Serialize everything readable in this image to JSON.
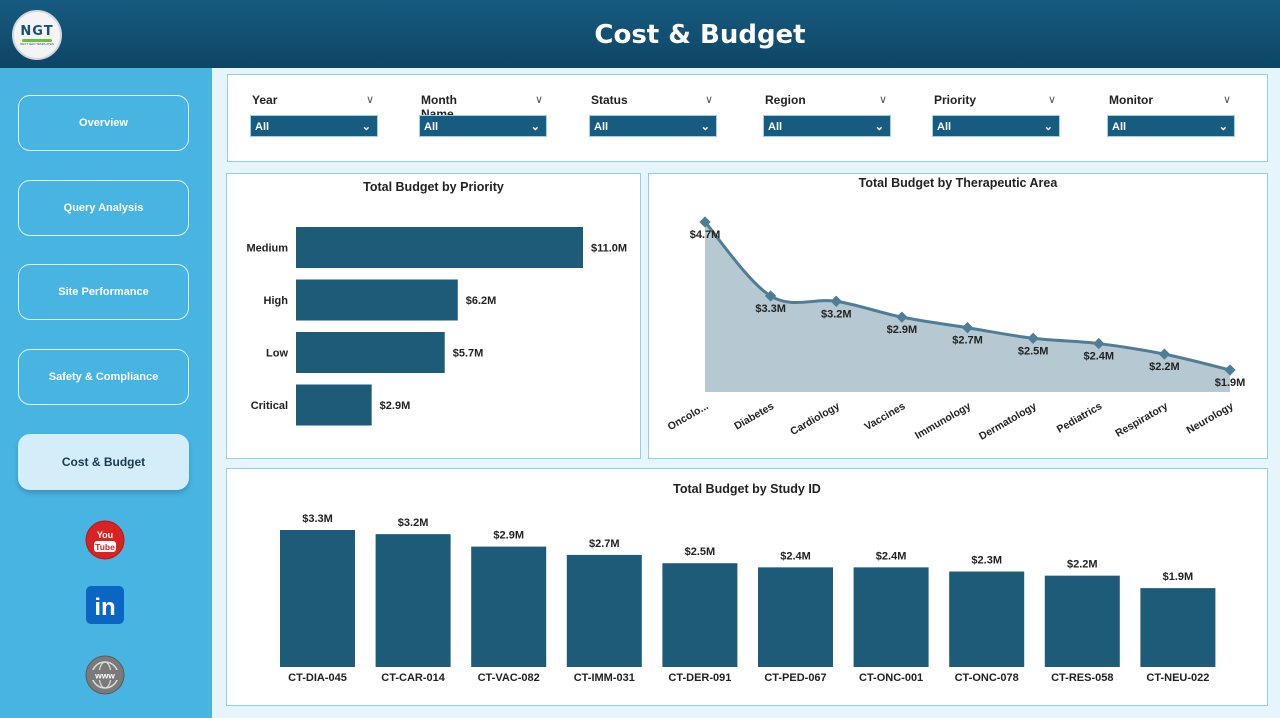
{
  "header": {
    "title": "Cost & Budget",
    "logo_text": "NGT",
    "logo_subtext": "NEXT GEN TEMPLATES"
  },
  "sidebar": {
    "items": [
      {
        "label": "Overview",
        "active": false
      },
      {
        "label": "Query Analysis",
        "active": false
      },
      {
        "label": "Site Performance",
        "active": false
      },
      {
        "label": "Safety & Compliance",
        "active": false
      },
      {
        "label": "Cost & Budget",
        "active": true
      }
    ],
    "social": [
      {
        "name": "youtube-icon",
        "text": "You Tube",
        "color": "#d92222"
      },
      {
        "name": "linkedin-icon",
        "text": "in",
        "color": "#0a66c2"
      },
      {
        "name": "www-icon",
        "text": "www",
        "color": "#777777"
      }
    ]
  },
  "filters": [
    {
      "label": "Year",
      "value": "All"
    },
    {
      "label": "Month Name",
      "value": "All"
    },
    {
      "label": "Status",
      "value": "All"
    },
    {
      "label": "Region",
      "value": "All"
    },
    {
      "label": "Priority",
      "value": "All"
    },
    {
      "label": "Monitor",
      "value": "All"
    }
  ],
  "chart_data": [
    {
      "type": "bar",
      "orientation": "horizontal",
      "title": "Total Budget by Priority",
      "categories": [
        "Medium",
        "High",
        "Low",
        "Critical"
      ],
      "values": [
        11.0,
        6.2,
        5.7,
        2.9
      ],
      "labels": [
        "$11.0M",
        "$6.2M",
        "$5.7M",
        "$2.9M"
      ],
      "unit": "$M",
      "color": "#1e5b79"
    },
    {
      "type": "area",
      "title": "Total Budget by Therapeutic Area",
      "categories": [
        "Oncolo...",
        "Diabetes",
        "Cardiology",
        "Vaccines",
        "Immunology",
        "Dermatology",
        "Pediatrics",
        "Respiratory",
        "Neurology"
      ],
      "values": [
        4.7,
        3.3,
        3.2,
        2.9,
        2.7,
        2.5,
        2.4,
        2.2,
        1.9
      ],
      "labels": [
        "$4.7M",
        "$3.3M",
        "$3.2M",
        "$2.9M",
        "$2.7M",
        "$2.5M",
        "$2.4M",
        "$2.2M",
        "$1.9M"
      ],
      "unit": "$M",
      "line_color": "#4f7d96",
      "fill_color": "#b6c9d3"
    },
    {
      "type": "bar",
      "orientation": "vertical",
      "title": "Total Budget by Study ID",
      "categories": [
        "CT-DIA-045",
        "CT-CAR-014",
        "CT-VAC-082",
        "CT-IMM-031",
        "CT-DER-091",
        "CT-PED-067",
        "CT-ONC-001",
        "CT-ONC-078",
        "CT-RES-058",
        "CT-NEU-022"
      ],
      "values": [
        3.3,
        3.2,
        2.9,
        2.7,
        2.5,
        2.4,
        2.4,
        2.3,
        2.2,
        1.9
      ],
      "labels": [
        "$3.3M",
        "$3.2M",
        "$2.9M",
        "$2.7M",
        "$2.5M",
        "$2.4M",
        "$2.4M",
        "$2.3M",
        "$2.2M",
        "$1.9M"
      ],
      "unit": "$M",
      "color": "#1e5b79"
    }
  ]
}
